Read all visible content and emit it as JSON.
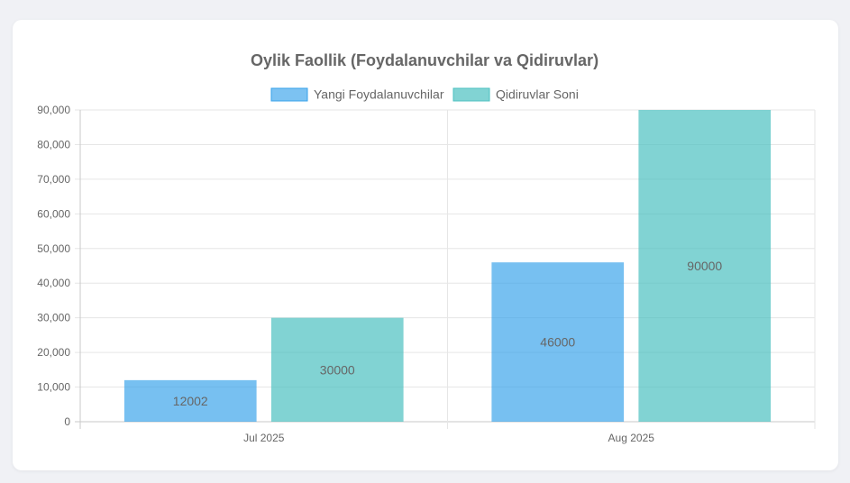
{
  "chart_data": {
    "type": "bar",
    "title": "Oylik Faollik (Foydalanuvchilar va Qidiruvlar)",
    "categories": [
      "Jul 2025",
      "Aug 2025"
    ],
    "series": [
      {
        "name": "Yangi Foydalanuvchilar",
        "values": [
          12002,
          46000
        ],
        "color": "#36a2eb"
      },
      {
        "name": "Qidiruvlar Soni",
        "values": [
          30000,
          90000
        ],
        "color": "#4bc0c0"
      }
    ],
    "ylim": [
      0,
      90000
    ],
    "yticks": [
      "0",
      "10,000",
      "20,000",
      "30,000",
      "40,000",
      "50,000",
      "60,000",
      "70,000",
      "80,000",
      "90,000"
    ],
    "legend_position": "top",
    "grid": true,
    "data_labels": true
  }
}
